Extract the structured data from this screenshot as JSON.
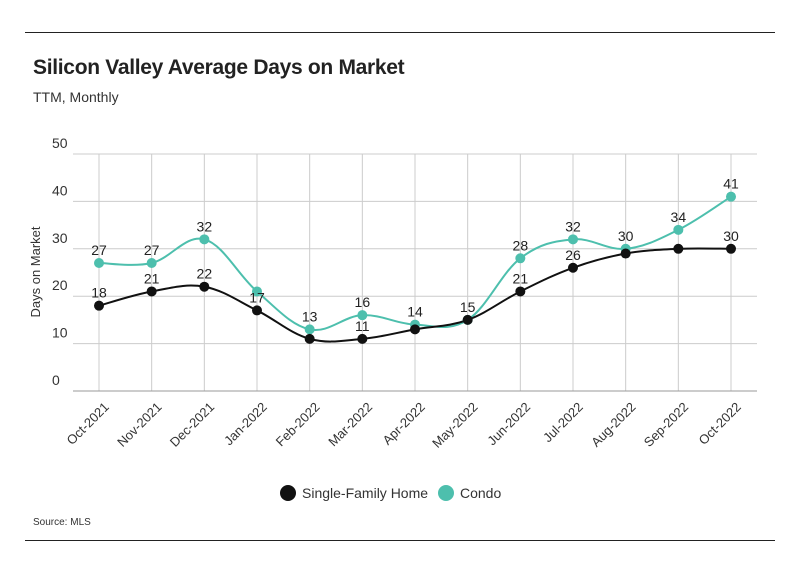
{
  "header": {
    "title": "Silicon Valley Average Days on Market",
    "subtitle": "TTM, Monthly"
  },
  "footer": {
    "source": "Source:  MLS"
  },
  "colors": {
    "single_family": "#111111",
    "condo": "#4dbfad",
    "grid": "#cccccc"
  },
  "chart_data": {
    "type": "line",
    "categories": [
      "Oct-2021",
      "Nov-2021",
      "Dec-2021",
      "Jan-2022",
      "Feb-2022",
      "Mar-2022",
      "Apr-2022",
      "May-2022",
      "Jun-2022",
      "Jul-2022",
      "Aug-2022",
      "Sep-2022",
      "Oct-2022"
    ],
    "series": [
      {
        "name": "Single-Family Home",
        "values": [
          18,
          21,
          22,
          17,
          11,
          11,
          13,
          15,
          21,
          26,
          29,
          30,
          30
        ],
        "labels": [
          "18",
          "21",
          "22",
          "17",
          "",
          "11",
          "",
          "15",
          "21",
          "26",
          "",
          "",
          "30"
        ]
      },
      {
        "name": "Condo",
        "values": [
          27,
          27,
          32,
          21,
          13,
          16,
          14,
          15,
          28,
          32,
          30,
          34,
          41
        ],
        "labels": [
          "27",
          "27",
          "32",
          "",
          "13",
          "16",
          "14",
          "",
          "28",
          "32",
          "30",
          "34",
          "41"
        ]
      }
    ],
    "ylabel": "Days on Market",
    "yticks": [
      0,
      10,
      20,
      30,
      40,
      50
    ],
    "ylim": [
      0,
      50
    ],
    "grid": true,
    "legend": "bottom-center"
  }
}
